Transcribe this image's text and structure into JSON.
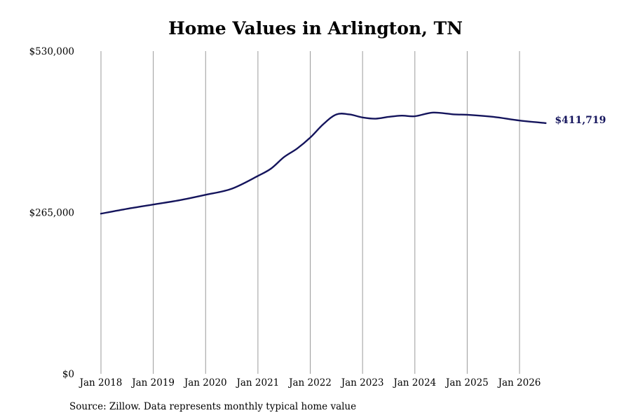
{
  "chart_data": {
    "type": "line",
    "title": "Home Values in Arlington, TN",
    "source": "Source: Zillow. Data represents monthly typical home value",
    "xlabel": "",
    "ylabel": "",
    "ylim": [
      0,
      530000
    ],
    "yticks": [
      {
        "value": 0,
        "label": "$0"
      },
      {
        "value": 265000,
        "label": "$265,000"
      },
      {
        "value": 530000,
        "label": "$530,000"
      }
    ],
    "xticks": [
      {
        "value": 2018,
        "label": "Jan 2018"
      },
      {
        "value": 2019,
        "label": "Jan 2019"
      },
      {
        "value": 2020,
        "label": "Jan 2020"
      },
      {
        "value": 2021,
        "label": "Jan 2021"
      },
      {
        "value": 2022,
        "label": "Jan 2022"
      },
      {
        "value": 2023,
        "label": "Jan 2023"
      },
      {
        "value": 2024,
        "label": "Jan 2024"
      },
      {
        "value": 2025,
        "label": "Jan 2025"
      },
      {
        "value": 2026,
        "label": "Jan 2026"
      }
    ],
    "xlim": [
      2017.85,
      2026.7
    ],
    "grid": "vertical",
    "line_color": "#14145c",
    "end_label": "$411,719",
    "series": [
      {
        "name": "",
        "points": [
          [
            2018.0,
            263000
          ],
          [
            2018.5,
            271000
          ],
          [
            2019.0,
            278000
          ],
          [
            2019.5,
            285000
          ],
          [
            2020.0,
            294000
          ],
          [
            2020.5,
            304000
          ],
          [
            2021.0,
            325000
          ],
          [
            2021.25,
            337000
          ],
          [
            2021.5,
            356000
          ],
          [
            2021.75,
            370000
          ],
          [
            2022.0,
            388000
          ],
          [
            2022.25,
            410000
          ],
          [
            2022.5,
            426000
          ],
          [
            2022.75,
            426000
          ],
          [
            2023.0,
            421000
          ],
          [
            2023.25,
            419000
          ],
          [
            2023.5,
            422000
          ],
          [
            2023.75,
            424000
          ],
          [
            2024.0,
            423000
          ],
          [
            2024.35,
            429000
          ],
          [
            2024.75,
            426000
          ],
          [
            2025.0,
            425500
          ],
          [
            2025.5,
            422000
          ],
          [
            2026.0,
            416000
          ],
          [
            2026.5,
            411719
          ]
        ]
      }
    ]
  }
}
